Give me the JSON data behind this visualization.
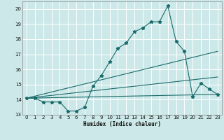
{
  "xlabel": "Humidex (Indice chaleur)",
  "bg_color": "#cce8e8",
  "grid_color": "#aad4d4",
  "line_color": "#1a6b6b",
  "xlim": [
    -0.5,
    23.5
  ],
  "ylim": [
    13,
    20.5
  ],
  "yticks": [
    13,
    14,
    15,
    16,
    17,
    18,
    19,
    20
  ],
  "xticks": [
    0,
    1,
    2,
    3,
    4,
    5,
    6,
    7,
    8,
    9,
    10,
    11,
    12,
    13,
    14,
    15,
    16,
    17,
    18,
    19,
    20,
    21,
    22,
    23
  ],
  "series": [
    {
      "x": [
        0,
        1,
        2,
        3,
        4,
        5,
        6,
        7,
        8,
        9,
        10,
        11,
        12,
        13,
        14,
        15,
        16,
        17,
        18,
        19,
        20,
        21,
        22,
        23
      ],
      "y": [
        14.1,
        14.1,
        13.85,
        13.85,
        13.85,
        13.25,
        13.25,
        13.5,
        14.9,
        15.6,
        16.5,
        17.4,
        17.75,
        18.5,
        18.75,
        19.15,
        19.15,
        20.2,
        17.85,
        17.2,
        14.2,
        15.1,
        14.7,
        14.35
      ],
      "marker": "*",
      "markersize": 3.5
    },
    {
      "x": [
        0,
        23
      ],
      "y": [
        14.1,
        17.2
      ],
      "marker": null
    },
    {
      "x": [
        0,
        23
      ],
      "y": [
        14.1,
        14.35
      ],
      "marker": null
    },
    {
      "x": [
        0,
        23
      ],
      "y": [
        14.1,
        15.5
      ],
      "marker": null
    }
  ]
}
